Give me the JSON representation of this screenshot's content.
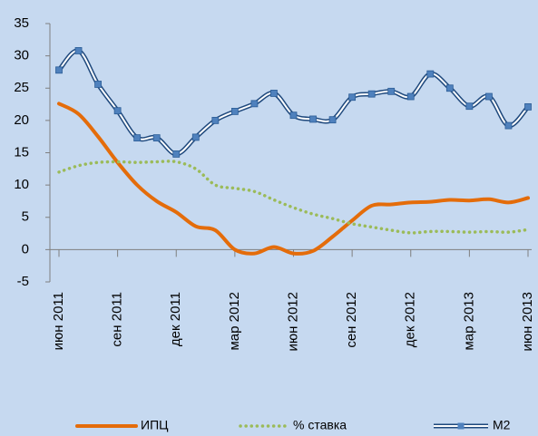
{
  "chart_data": {
    "type": "line",
    "categories": [
      "июн 2011",
      null,
      null,
      "сен 2011",
      null,
      null,
      "дек 2011",
      null,
      null,
      "мар 2012",
      null,
      null,
      "июн 2012",
      null,
      null,
      "сен 2012",
      null,
      null,
      "дек 2012",
      null,
      null,
      "мар 2013",
      null,
      null,
      "июн 2013"
    ],
    "series": [
      {
        "name": "ИПЦ",
        "color": "#e46c0a",
        "style": "solid",
        "values": [
          22.6,
          21.0,
          17.5,
          13.5,
          10.0,
          7.5,
          5.8,
          3.6,
          3.0,
          0.0,
          -0.6,
          0.4,
          -0.6,
          -0.2,
          2.0,
          4.5,
          6.8,
          7.0,
          7.3,
          7.4,
          7.7,
          7.6,
          7.8,
          7.3,
          8.0
        ]
      },
      {
        "name": "% ставка",
        "color": "#9bbb59",
        "style": "dotted",
        "values": [
          12.0,
          13.0,
          13.5,
          13.6,
          13.5,
          13.6,
          13.6,
          12.5,
          10.0,
          9.5,
          9.0,
          7.7,
          6.5,
          5.5,
          4.8,
          4.0,
          3.5,
          3.0,
          2.6,
          2.8,
          2.8,
          2.7,
          2.8,
          2.7,
          3.1
        ]
      },
      {
        "name": "M2",
        "color": "#4f81bd",
        "style": "double",
        "values": [
          27.8,
          30.8,
          25.6,
          21.5,
          17.3,
          17.3,
          14.8,
          17.4,
          20.0,
          21.4,
          22.6,
          24.2,
          20.8,
          20.2,
          20.1,
          23.6,
          24.1,
          24.5,
          23.7,
          27.2,
          25.0,
          22.2,
          23.7,
          19.2,
          22.1
        ]
      }
    ],
    "ylim": [
      -5,
      35
    ],
    "yticks": [
      -5,
      0,
      5,
      10,
      15,
      20,
      25,
      30,
      35
    ],
    "legend": "bottom"
  }
}
